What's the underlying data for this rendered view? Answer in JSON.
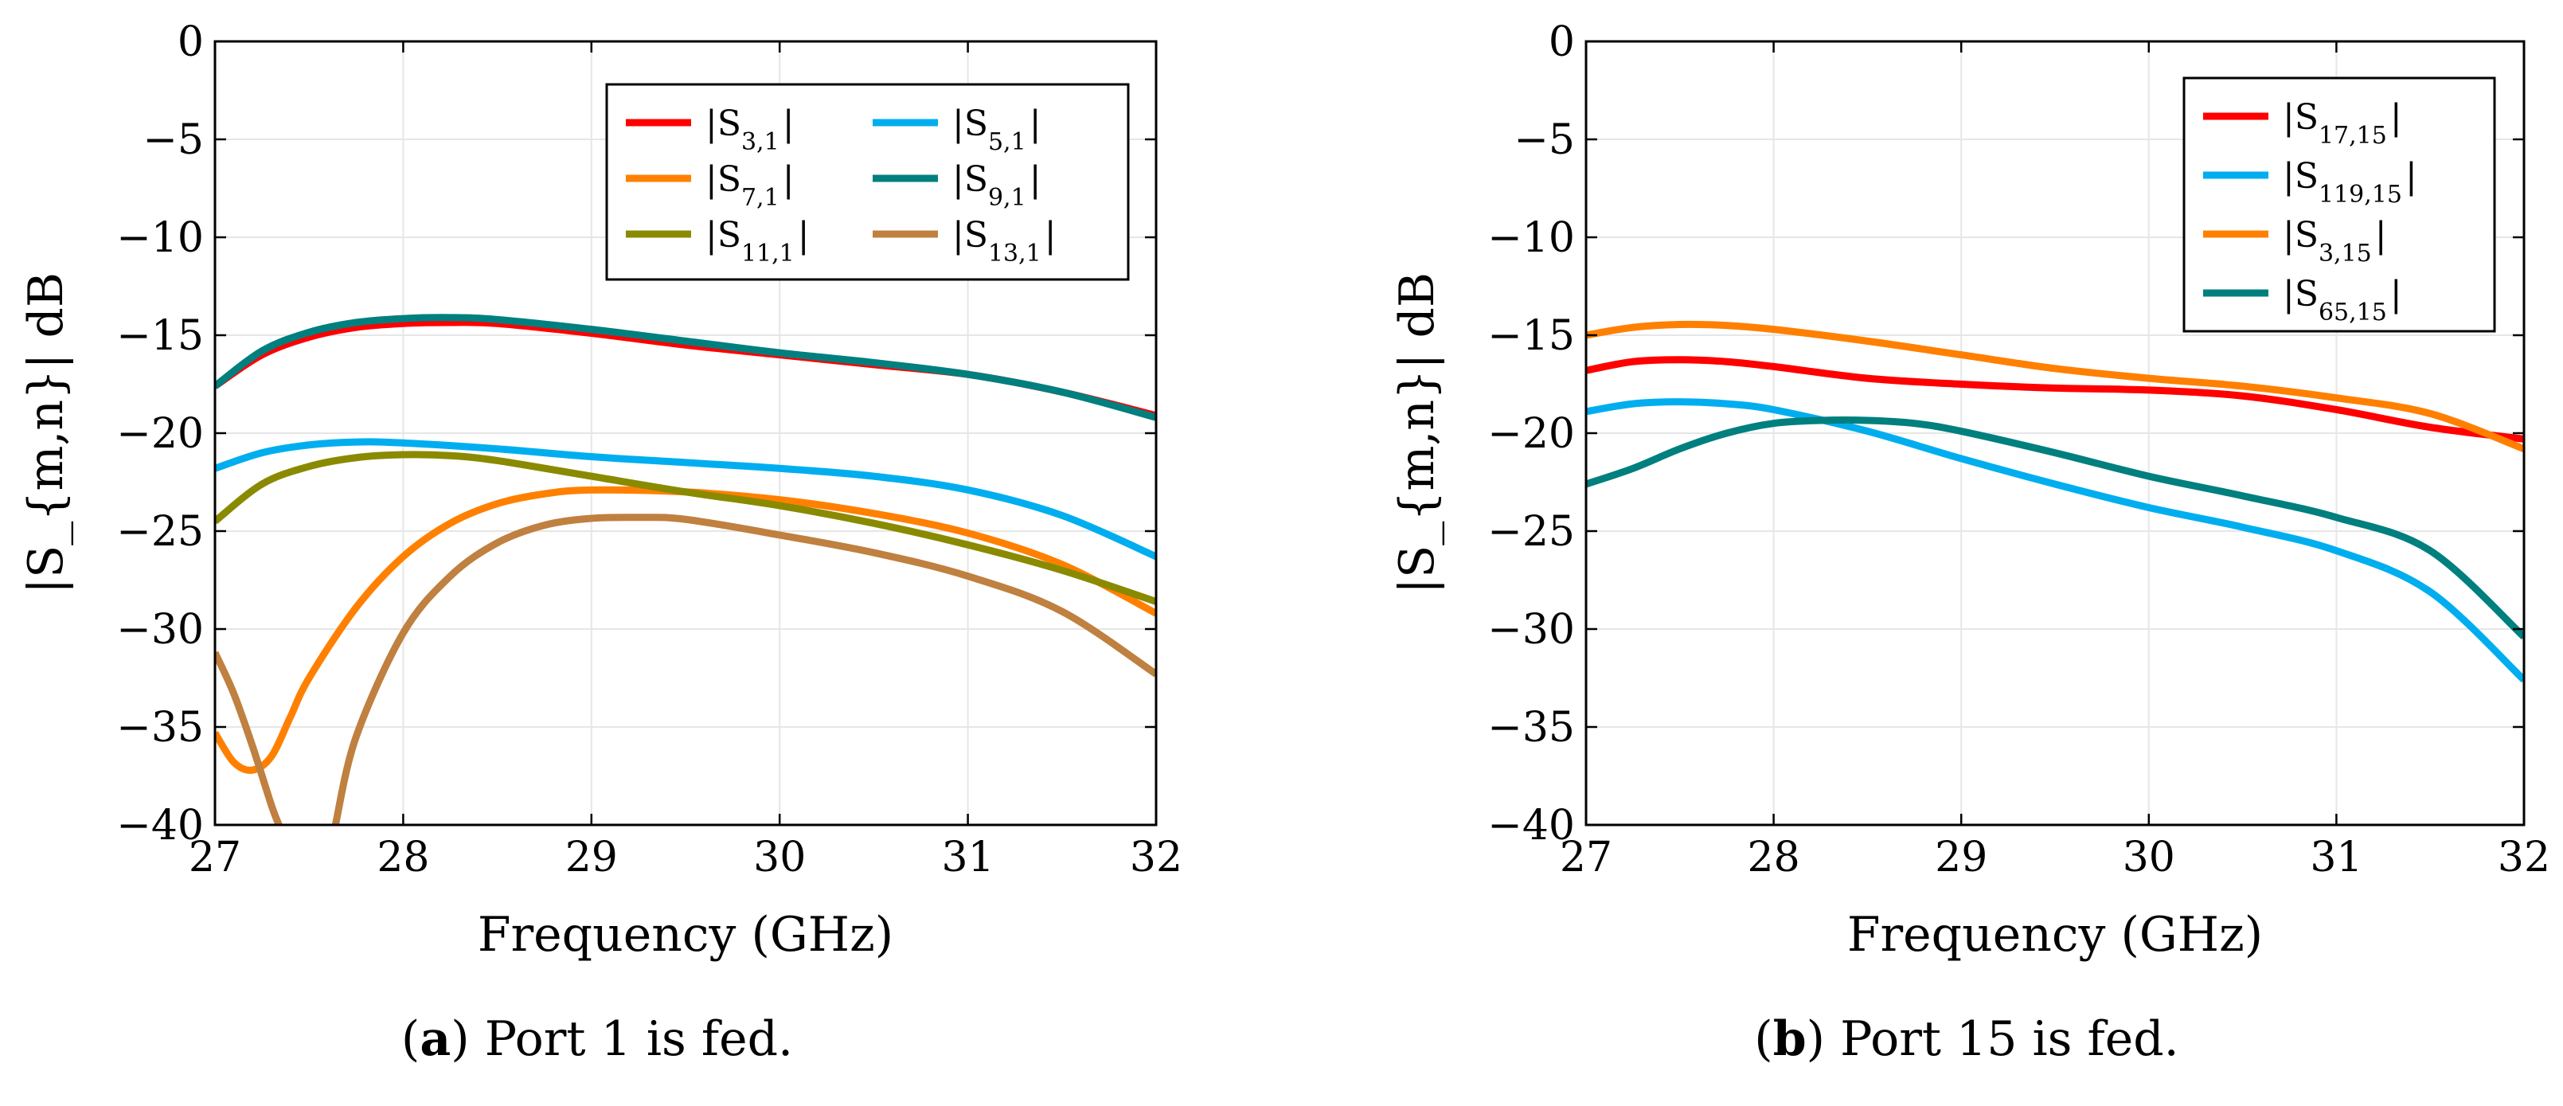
{
  "chart_data": [
    {
      "type": "line",
      "panel_label": "a",
      "caption": "Port 1 is fed.",
      "xlabel": "Frequency (GHz)",
      "ylabel": "|S_{m,n}| dB",
      "xlim": [
        27,
        32
      ],
      "ylim": [
        -40,
        0
      ],
      "xticks": [
        27,
        28,
        29,
        30,
        31,
        32
      ],
      "yticks": [
        0,
        -5,
        -10,
        -15,
        -20,
        -25,
        -30,
        -35,
        -40
      ],
      "grid": true,
      "legend": {
        "placement": "top-right",
        "columns": 2
      },
      "series": [
        {
          "name": "|S3,1|",
          "label_main": "|S",
          "label_sub": "3,1",
          "color": "#ff0000",
          "x": [
            27,
            27.25,
            27.5,
            27.75,
            28,
            28.25,
            28.5,
            29,
            29.5,
            30,
            30.5,
            31,
            31.5,
            32
          ],
          "y": [
            -17.6,
            -16.0,
            -15.1,
            -14.6,
            -14.4,
            -14.35,
            -14.4,
            -14.9,
            -15.5,
            -16.0,
            -16.5,
            -17.0,
            -17.9,
            -19.1
          ]
        },
        {
          "name": "|S5,1|",
          "label_main": "|S",
          "label_sub": "5,1",
          "color": "#00aeef",
          "x": [
            27,
            27.25,
            27.5,
            27.75,
            28,
            28.5,
            29,
            29.5,
            30,
            30.5,
            31,
            31.5,
            32
          ],
          "y": [
            -21.8,
            -21.0,
            -20.6,
            -20.45,
            -20.5,
            -20.8,
            -21.2,
            -21.5,
            -21.8,
            -22.2,
            -22.9,
            -24.2,
            -26.3
          ]
        },
        {
          "name": "|S7,1|",
          "label_main": "|S",
          "label_sub": "7,1",
          "color": "#ff8000",
          "x": [
            27,
            27.1,
            27.2,
            27.3,
            27.4,
            27.5,
            27.75,
            28,
            28.25,
            28.5,
            28.75,
            29,
            29.5,
            30,
            30.5,
            31,
            31.5,
            32
          ],
          "y": [
            -35.3,
            -36.8,
            -37.2,
            -36.5,
            -34.5,
            -32.5,
            -28.9,
            -26.3,
            -24.6,
            -23.6,
            -23.1,
            -22.9,
            -23.0,
            -23.4,
            -24.1,
            -25.1,
            -26.7,
            -29.2
          ]
        },
        {
          "name": "|S9,1|",
          "label_main": "|S",
          "label_sub": "9,1",
          "color": "#007f7f",
          "x": [
            27,
            27.25,
            27.5,
            27.75,
            28,
            28.25,
            28.5,
            29,
            29.5,
            30,
            30.5,
            31,
            31.5,
            32
          ],
          "y": [
            -17.6,
            -15.8,
            -14.85,
            -14.35,
            -14.15,
            -14.1,
            -14.2,
            -14.7,
            -15.3,
            -15.9,
            -16.4,
            -17.0,
            -17.9,
            -19.2
          ]
        },
        {
          "name": "|S11,1|",
          "label_main": "|S",
          "label_sub": "11,1",
          "color": "#8a8a00",
          "x": [
            27,
            27.25,
            27.5,
            27.75,
            28,
            28.25,
            28.5,
            29,
            29.5,
            30,
            30.5,
            31,
            31.5,
            32
          ],
          "y": [
            -24.5,
            -22.6,
            -21.7,
            -21.25,
            -21.1,
            -21.15,
            -21.4,
            -22.2,
            -23.0,
            -23.7,
            -24.6,
            -25.7,
            -27.0,
            -28.6
          ]
        },
        {
          "name": "|S13,1|",
          "label_main": "|S",
          "label_sub": "13,1",
          "color": "#bf8040",
          "x": [
            27,
            27.1,
            27.2,
            27.3,
            27.34
          ],
          "y": [
            -31.2,
            -33.3,
            -36.0,
            -39.0,
            -40.0
          ],
          "x2": [
            27.64,
            27.75,
            28,
            28.25,
            28.5,
            28.75,
            29,
            29.25,
            29.5,
            30,
            30.5,
            31,
            31.5,
            32
          ],
          "y2": [
            -40.0,
            -35.5,
            -30.2,
            -27.3,
            -25.6,
            -24.7,
            -24.35,
            -24.3,
            -24.4,
            -25.2,
            -26.1,
            -27.3,
            -29.1,
            -32.3
          ]
        }
      ]
    },
    {
      "type": "line",
      "panel_label": "b",
      "caption": "Port 15 is fed.",
      "xlabel": "Frequency (GHz)",
      "ylabel": "|S_{m,n}| dB",
      "xlim": [
        27,
        32
      ],
      "ylim": [
        -40,
        0
      ],
      "xticks": [
        27,
        28,
        29,
        30,
        31,
        32
      ],
      "yticks": [
        0,
        -5,
        -10,
        -15,
        -20,
        -25,
        -30,
        -35,
        -40
      ],
      "grid": true,
      "legend": {
        "placement": "top-right",
        "columns": 1
      },
      "series": [
        {
          "name": "|S17,15|",
          "label_main": "|S",
          "label_sub": "17,15",
          "color": "#ff0000",
          "x": [
            27,
            27.25,
            27.5,
            27.75,
            28,
            28.5,
            29,
            29.5,
            30,
            30.5,
            31,
            31.5,
            32
          ],
          "y": [
            -16.8,
            -16.35,
            -16.25,
            -16.35,
            -16.6,
            -17.2,
            -17.5,
            -17.7,
            -17.8,
            -18.1,
            -18.8,
            -19.7,
            -20.3
          ]
        },
        {
          "name": "|S119,15|",
          "label_main": "|S",
          "label_sub": "119,15",
          "color": "#00aeef",
          "x": [
            27,
            27.25,
            27.5,
            27.75,
            28,
            28.5,
            29,
            29.5,
            30,
            30.5,
            31,
            31.5,
            32
          ],
          "y": [
            -18.9,
            -18.5,
            -18.4,
            -18.5,
            -18.8,
            -19.9,
            -21.3,
            -22.6,
            -23.8,
            -24.8,
            -26.0,
            -28.1,
            -32.6
          ]
        },
        {
          "name": "|S3,15|",
          "label_main": "|S",
          "label_sub": "3,15",
          "color": "#ff8000",
          "x": [
            27,
            27.25,
            27.5,
            27.75,
            28,
            28.5,
            29,
            29.5,
            30,
            30.5,
            31,
            31.5,
            32
          ],
          "y": [
            -15.0,
            -14.6,
            -14.45,
            -14.5,
            -14.7,
            -15.3,
            -16.0,
            -16.7,
            -17.2,
            -17.6,
            -18.2,
            -19.0,
            -20.8
          ]
        },
        {
          "name": "|S65,15|",
          "label_main": "|S",
          "label_sub": "65,15",
          "color": "#007f7f",
          "x": [
            27,
            27.25,
            27.5,
            27.75,
            28,
            28.25,
            28.5,
            28.75,
            29,
            29.5,
            30,
            30.5,
            31,
            31.5,
            32
          ],
          "y": [
            -22.6,
            -21.8,
            -20.8,
            -20.0,
            -19.5,
            -19.35,
            -19.35,
            -19.5,
            -19.9,
            -21.0,
            -22.2,
            -23.2,
            -24.3,
            -26.0,
            -30.4
          ]
        }
      ]
    }
  ]
}
